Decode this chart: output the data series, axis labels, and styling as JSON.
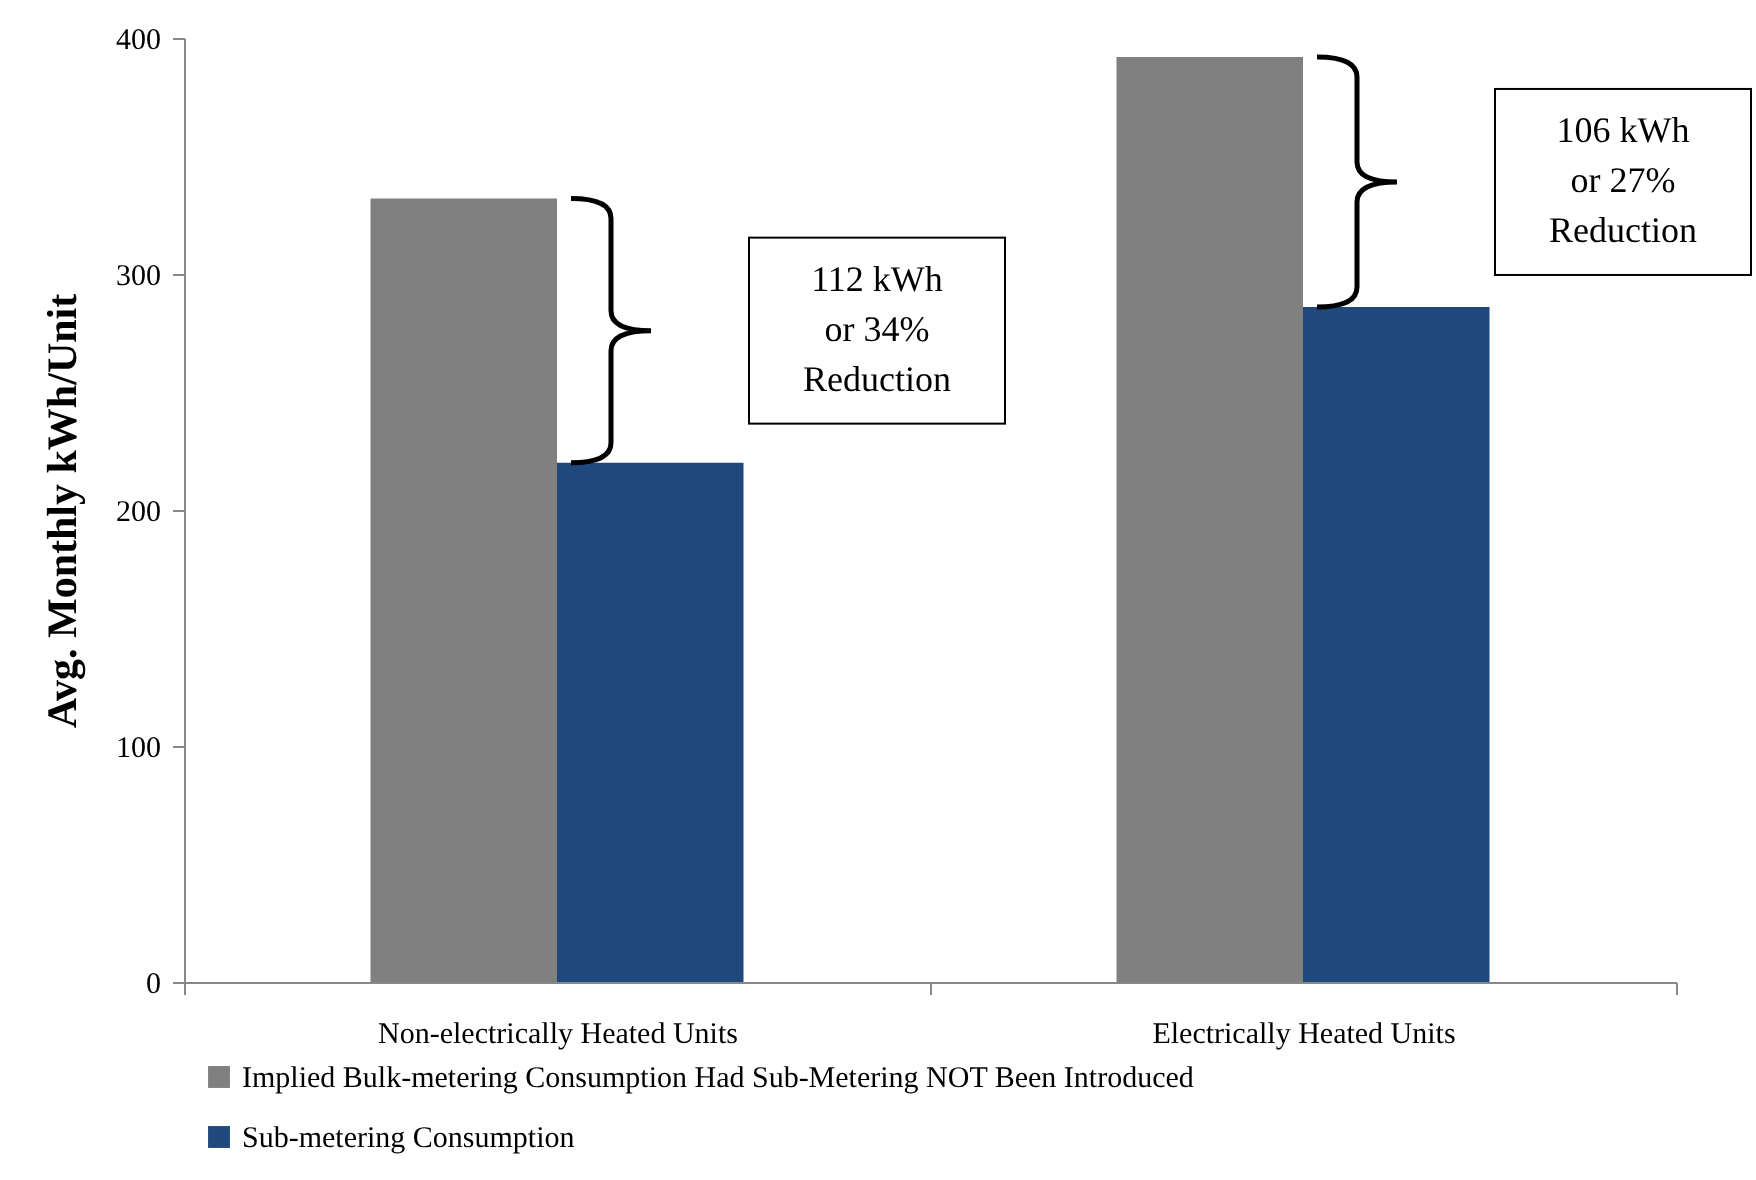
{
  "chart_data": {
    "type": "bar",
    "ylabel": "Avg. Monthly kWh/Unit",
    "categories": [
      "Non-electrically Heated Units",
      "Electrically Heated Units"
    ],
    "series": [
      {
        "name": "Implied Bulk-metering Consumption  Had Sub-Metering NOT Been Introduced",
        "color": "#808080",
        "values": [
          332,
          392
        ]
      },
      {
        "name": "Sub-metering Consumption",
        "color": "#1f497d",
        "values": [
          220,
          286
        ]
      }
    ],
    "ylim": [
      0,
      400
    ],
    "yticks": [
      0,
      100,
      200,
      300,
      400
    ],
    "grid": false,
    "legend": "bottom left",
    "annotations": [
      "112 kWh\nor  34%\nReduction",
      "106 kWh\nor  27%\nReduction"
    ]
  }
}
